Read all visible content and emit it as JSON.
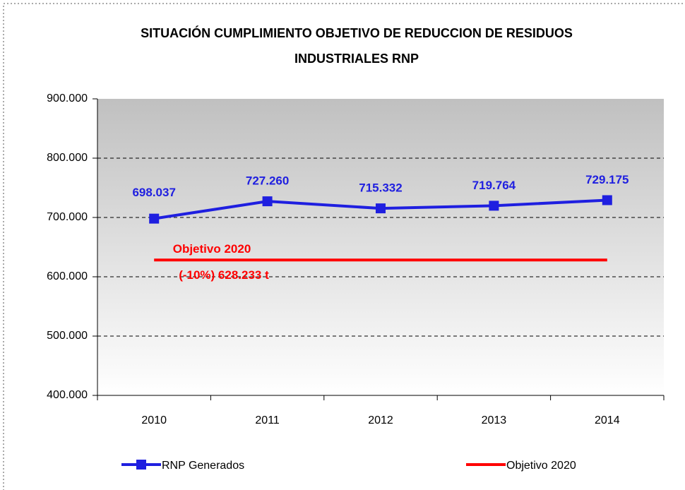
{
  "chart_data": {
    "type": "line",
    "title": [
      "SITUACIÓN CUMPLIMIENTO OBJETIVO DE REDUCCION DE RESIDUOS",
      "INDUSTRIALES RNP"
    ],
    "categories": [
      "2010",
      "2011",
      "2012",
      "2013",
      "2014"
    ],
    "series": [
      {
        "name": "RNP Generados",
        "color": "#1f1fe0",
        "values": [
          698037,
          727260,
          715332,
          719764,
          729175
        ],
        "value_labels": [
          "698.037",
          "727.260",
          "715.332",
          "719.764",
          "729.175"
        ]
      },
      {
        "name": "Objetivo 2020",
        "color": "#ff0000",
        "values": [
          628233,
          628233,
          628233,
          628233,
          628233
        ]
      }
    ],
    "annotations": [
      "Objetivo 2020",
      "(-10%) 628.233 t"
    ],
    "ylim": [
      400000,
      900000
    ],
    "yticks": [
      {
        "value": 400000,
        "label": "400.000"
      },
      {
        "value": 500000,
        "label": "500.000"
      },
      {
        "value": 600000,
        "label": "600.000"
      },
      {
        "value": 700000,
        "label": "700.000"
      },
      {
        "value": 800000,
        "label": "800.000"
      },
      {
        "value": 900000,
        "label": "900.000"
      }
    ],
    "grid": true,
    "legend": "bottom"
  }
}
